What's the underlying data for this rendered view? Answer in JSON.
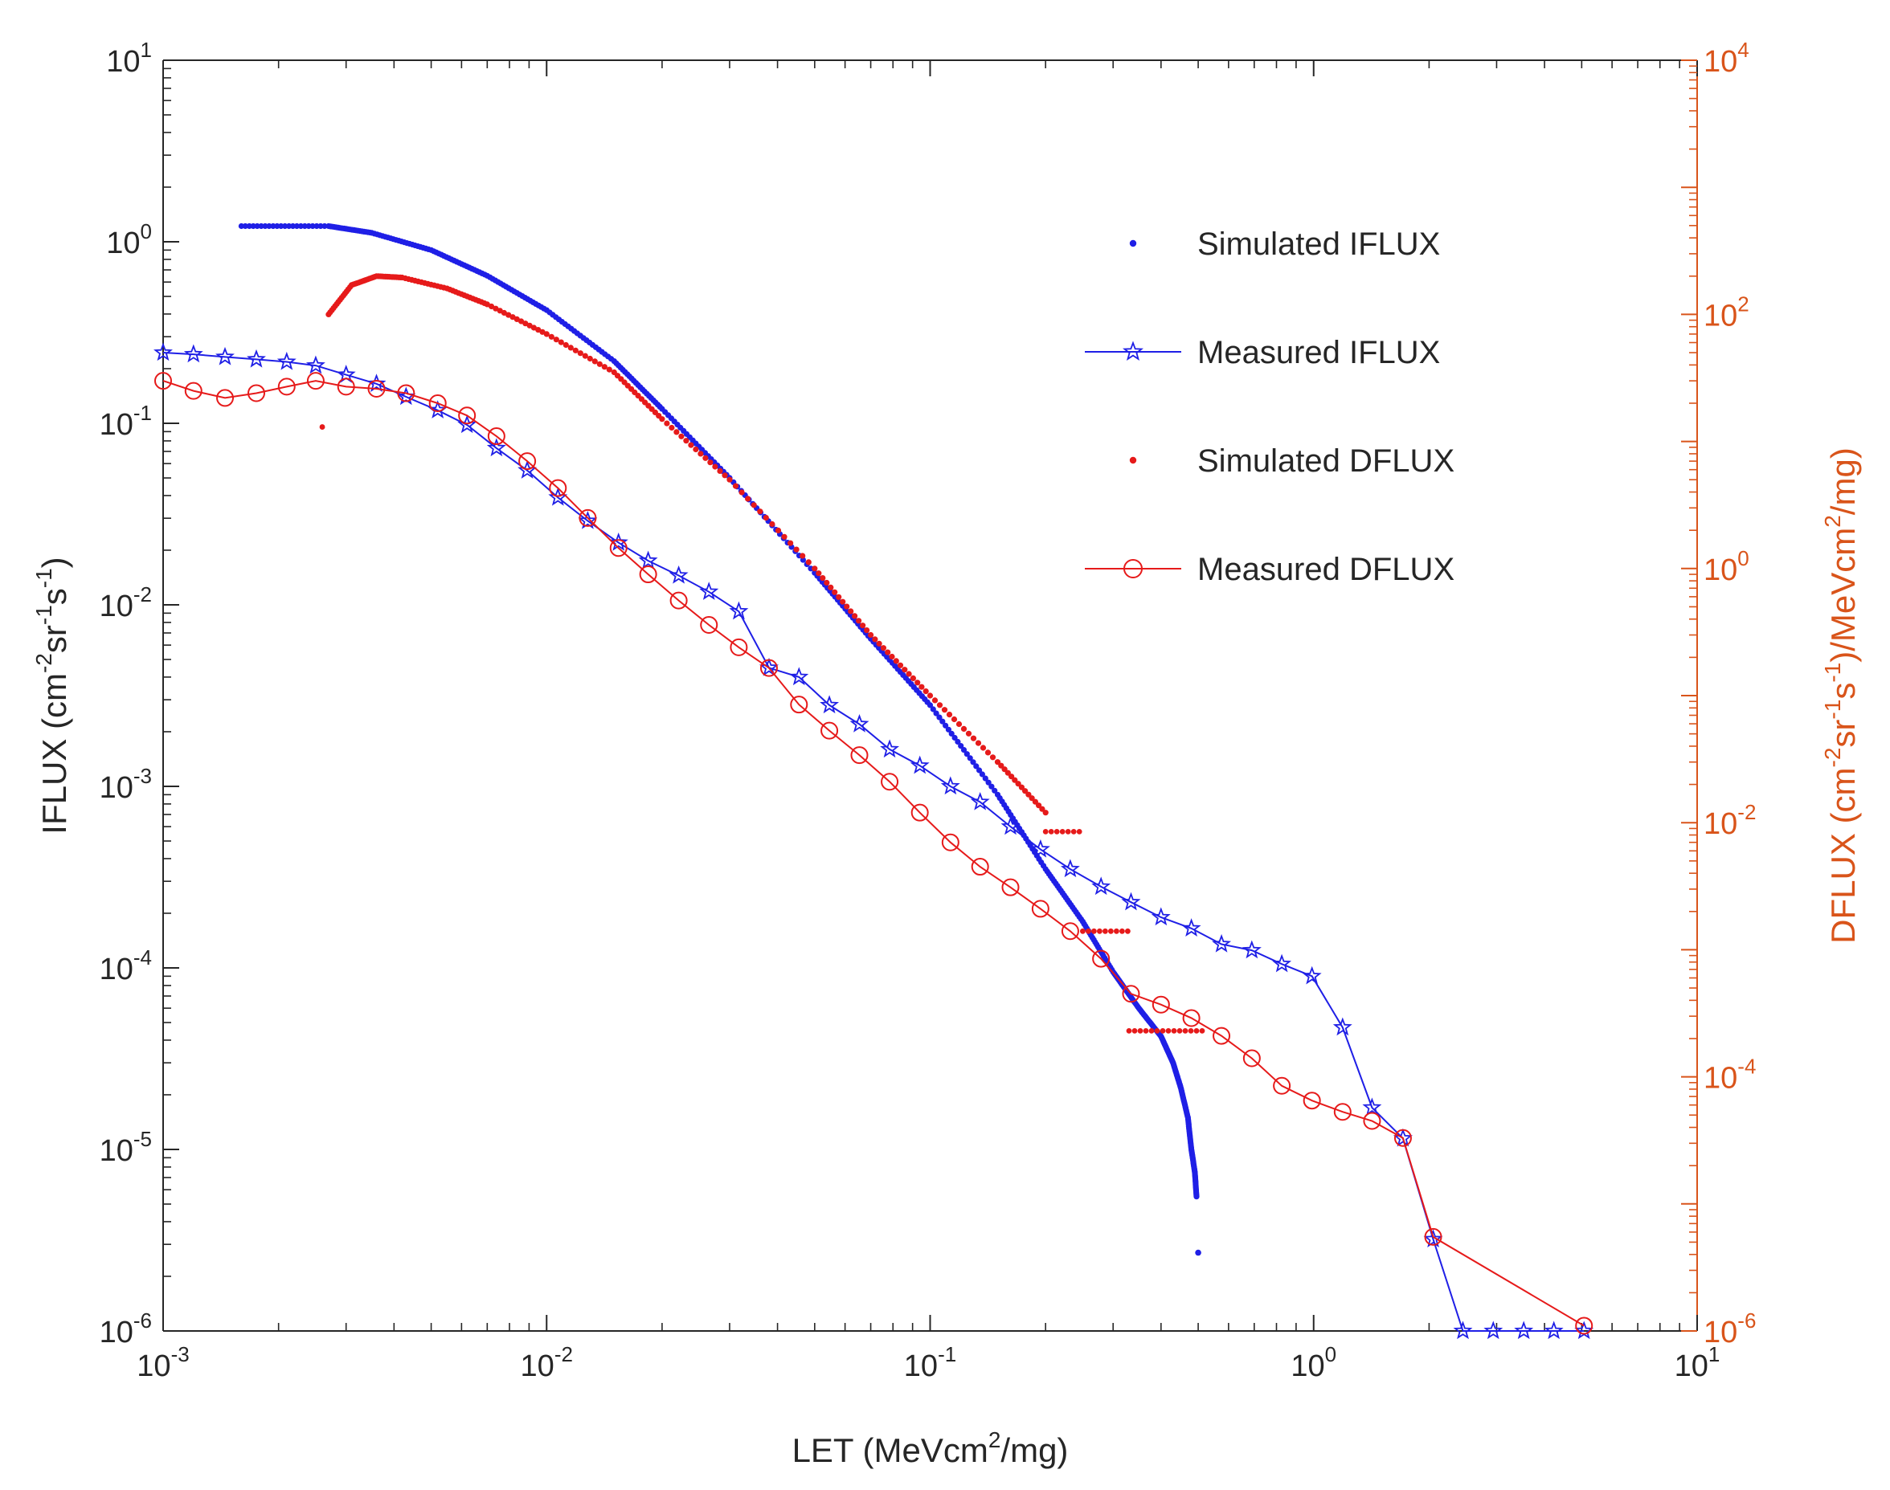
{
  "chart_data": {
    "type": "scatter",
    "title": "",
    "xlabel": "LET (MeVcm²/mg)",
    "xlabel_parts": {
      "pre": "LET (MeVcm",
      "sup": "2",
      "post": "/mg)"
    },
    "ylabel": "IFLUX (cm⁻²sr⁻¹s⁻¹)",
    "ylabel_parts": {
      "pre": "IFLUX (cm",
      "sup1": "-2",
      "mid1": "sr",
      "sup2": "-1",
      "mid2": "s",
      "sup3": "-1",
      "post": ")"
    },
    "y2label": "DFLUX (cm⁻²sr⁻¹s⁻¹)/MeVcm²/mg)",
    "y2label_parts": {
      "pre": "DFLUX (cm",
      "sup1": "-2",
      "mid1": "sr",
      "sup2": "-1",
      "mid2": "s",
      "sup3": "-1",
      "mid3": ")/MeVcm",
      "sup4": "2",
      "post": "/mg)"
    },
    "xscale": "log",
    "yscale": "log",
    "y2scale": "log",
    "xlim": [
      0.001,
      10
    ],
    "ylim": [
      1e-06,
      10
    ],
    "y2lim": [
      1e-06,
      10000
    ],
    "x_ticks": [
      {
        "base": "10",
        "exp": "-3",
        "value": 0.001
      },
      {
        "base": "10",
        "exp": "-2",
        "value": 0.01
      },
      {
        "base": "10",
        "exp": "-1",
        "value": 0.1
      },
      {
        "base": "10",
        "exp": "0",
        "value": 1
      },
      {
        "base": "10",
        "exp": "1",
        "value": 10
      }
    ],
    "y_ticks": [
      {
        "base": "10",
        "exp": "-6",
        "value": 1e-06
      },
      {
        "base": "10",
        "exp": "-5",
        "value": 1e-05
      },
      {
        "base": "10",
        "exp": "-4",
        "value": 0.0001
      },
      {
        "base": "10",
        "exp": "-3",
        "value": 0.001
      },
      {
        "base": "10",
        "exp": "-2",
        "value": 0.01
      },
      {
        "base": "10",
        "exp": "-1",
        "value": 0.1
      },
      {
        "base": "10",
        "exp": "0",
        "value": 1
      },
      {
        "base": "10",
        "exp": "1",
        "value": 10
      }
    ],
    "y2_ticks": [
      {
        "base": "10",
        "exp": "-6",
        "value": 1e-06
      },
      {
        "base": "10",
        "exp": "-4",
        "value": 0.0001
      },
      {
        "base": "10",
        "exp": "-2",
        "value": 0.01
      },
      {
        "base": "10",
        "exp": "0",
        "value": 1
      },
      {
        "base": "10",
        "exp": "2",
        "value": 100
      },
      {
        "base": "10",
        "exp": "4",
        "value": 10000
      }
    ],
    "grid": false,
    "legend_position": "top-right",
    "colors": {
      "blue": "#1f1fe6",
      "red": "#e61a1a",
      "orange": "#d9541a",
      "axis": "#262626"
    },
    "series": [
      {
        "name": "Simulated IFLUX",
        "axis": "left",
        "style": "dots",
        "color": "#1f1fe6",
        "curve_points": [
          [
            0.0016,
            1.22
          ],
          [
            0.0027,
            1.22
          ],
          [
            0.0035,
            1.12
          ],
          [
            0.005,
            0.9
          ],
          [
            0.007,
            0.65
          ],
          [
            0.01,
            0.42
          ],
          [
            0.015,
            0.22
          ],
          [
            0.02,
            0.12
          ],
          [
            0.03,
            0.05
          ],
          [
            0.05,
            0.015
          ],
          [
            0.07,
            0.0065
          ],
          [
            0.1,
            0.0028
          ],
          [
            0.15,
            0.0009
          ],
          [
            0.2,
            0.00035
          ],
          [
            0.25,
            0.00018
          ],
          [
            0.3,
            9.5e-05
          ],
          [
            0.35,
            6e-05
          ],
          [
            0.4,
            4.2e-05
          ],
          [
            0.43,
            3e-05
          ],
          [
            0.45,
            2.2e-05
          ],
          [
            0.47,
            1.5e-05
          ],
          [
            0.48,
            1e-05
          ],
          [
            0.49,
            7.5e-06
          ],
          [
            0.495,
            5.5e-06
          ]
        ],
        "tail_points": [
          [
            0.5,
            2.7e-06
          ]
        ]
      },
      {
        "name": "Measured IFLUX",
        "axis": "left",
        "style": "line-star",
        "color": "#1f1fe6",
        "points": [
          [
            0.001,
            0.245
          ],
          [
            0.0012,
            0.24
          ],
          [
            0.00145,
            0.232
          ],
          [
            0.00175,
            0.225
          ],
          [
            0.0021,
            0.218
          ],
          [
            0.0025,
            0.208
          ],
          [
            0.003,
            0.185
          ],
          [
            0.0036,
            0.165
          ],
          [
            0.0043,
            0.14
          ],
          [
            0.0052,
            0.118
          ],
          [
            0.0062,
            0.098
          ],
          [
            0.0074,
            0.073
          ],
          [
            0.0089,
            0.055
          ],
          [
            0.0107,
            0.039
          ],
          [
            0.0128,
            0.029
          ],
          [
            0.0154,
            0.022
          ],
          [
            0.0184,
            0.0175
          ],
          [
            0.0221,
            0.0145
          ],
          [
            0.0265,
            0.0118
          ],
          [
            0.0317,
            0.0092
          ],
          [
            0.038,
            0.0045
          ],
          [
            0.0455,
            0.004
          ],
          [
            0.0546,
            0.0028
          ],
          [
            0.0654,
            0.0022
          ],
          [
            0.0784,
            0.0016
          ],
          [
            0.094,
            0.0013
          ],
          [
            0.113,
            0.001
          ],
          [
            0.135,
            0.00082
          ],
          [
            0.162,
            0.0006
          ],
          [
            0.194,
            0.00045
          ],
          [
            0.232,
            0.00035
          ],
          [
            0.279,
            0.00028
          ],
          [
            0.334,
            0.00023
          ],
          [
            0.4,
            0.00019
          ],
          [
            0.48,
            0.000165
          ],
          [
            0.575,
            0.000135
          ],
          [
            0.69,
            0.000125
          ],
          [
            0.826,
            0.000105
          ],
          [
            0.99,
            9e-05
          ],
          [
            1.19,
            4.7e-05
          ],
          [
            1.42,
            1.7e-05
          ],
          [
            1.71,
            1.15e-05
          ],
          [
            2.05,
            3.2e-06
          ],
          [
            2.45,
            1e-06
          ],
          [
            2.94,
            1e-06
          ],
          [
            3.53,
            1e-06
          ],
          [
            4.23,
            1e-06
          ],
          [
            5.07,
            1e-06
          ]
        ]
      },
      {
        "name": "Simulated DFLUX",
        "axis": "right",
        "style": "dots",
        "color": "#e61a1a",
        "curve_points": [
          [
            0.0027,
            100
          ],
          [
            0.0031,
            170
          ],
          [
            0.0036,
            200
          ],
          [
            0.0042,
            195
          ],
          [
            0.0055,
            160
          ],
          [
            0.007,
            120
          ],
          [
            0.01,
            70
          ],
          [
            0.015,
            35
          ],
          [
            0.02,
            15
          ],
          [
            0.03,
            5
          ],
          [
            0.05,
            1
          ],
          [
            0.07,
            0.3
          ],
          [
            0.1,
            0.1
          ],
          [
            0.15,
            0.03
          ],
          [
            0.2,
            0.012
          ]
        ],
        "outlier_points": [
          [
            0.0026,
            13
          ]
        ],
        "steps": [
          [
            0.2,
            0.245,
            0.0085
          ],
          [
            0.25,
            0.33,
            0.0014
          ],
          [
            0.33,
            0.52,
            0.00023
          ]
        ]
      },
      {
        "name": "Measured DFLUX",
        "axis": "right",
        "style": "line-circle",
        "color": "#e61a1a",
        "points": [
          [
            0.001,
            30
          ],
          [
            0.0012,
            25
          ],
          [
            0.00145,
            22
          ],
          [
            0.00175,
            24
          ],
          [
            0.0021,
            27
          ],
          [
            0.0025,
            30
          ],
          [
            0.003,
            27
          ],
          [
            0.0036,
            26
          ],
          [
            0.0043,
            24
          ],
          [
            0.0052,
            20
          ],
          [
            0.0062,
            16
          ],
          [
            0.0074,
            11
          ],
          [
            0.0089,
            7
          ],
          [
            0.0107,
            4.3
          ],
          [
            0.0128,
            2.5
          ],
          [
            0.0154,
            1.45
          ],
          [
            0.0184,
            0.9
          ],
          [
            0.0221,
            0.56
          ],
          [
            0.0265,
            0.36
          ],
          [
            0.0317,
            0.24
          ],
          [
            0.038,
            0.165
          ],
          [
            0.0455,
            0.085
          ],
          [
            0.0546,
            0.053
          ],
          [
            0.0654,
            0.034
          ],
          [
            0.0784,
            0.021
          ],
          [
            0.094,
            0.012
          ],
          [
            0.113,
            0.007
          ],
          [
            0.135,
            0.0045
          ],
          [
            0.162,
            0.0031
          ],
          [
            0.194,
            0.0021
          ],
          [
            0.232,
            0.0014
          ],
          [
            0.279,
            0.00085
          ],
          [
            0.334,
            0.00045
          ],
          [
            0.4,
            0.00037
          ],
          [
            0.48,
            0.00029
          ],
          [
            0.575,
            0.00021
          ],
          [
            0.69,
            0.00014
          ],
          [
            0.826,
            8.5e-05
          ],
          [
            0.99,
            6.5e-05
          ],
          [
            1.19,
            5.3e-05
          ],
          [
            1.42,
            4.5e-05
          ],
          [
            1.71,
            3.3e-05
          ],
          [
            2.05,
            5.5e-06
          ],
          [
            5.07,
            1.1e-06
          ]
        ]
      }
    ]
  }
}
